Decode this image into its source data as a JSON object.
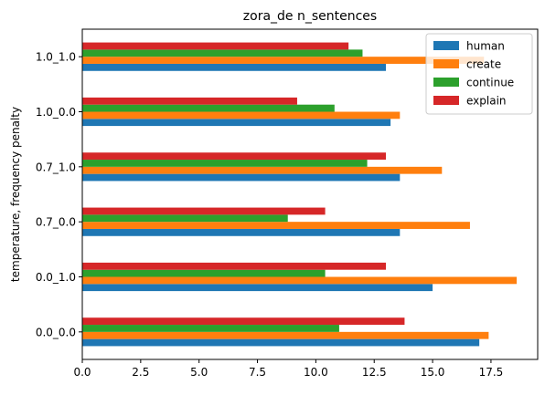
{
  "chart_data": {
    "type": "bar",
    "orientation": "horizontal",
    "title": "zora_de n_sentences",
    "xlabel": "",
    "ylabel": "temperature, frequency penalty",
    "xlim": [
      0,
      19.5
    ],
    "xticks": [
      0.0,
      2.5,
      5.0,
      7.5,
      10.0,
      12.5,
      15.0,
      17.5
    ],
    "xtick_labels": [
      "0.0",
      "2.5",
      "5.0",
      "7.5",
      "10.0",
      "12.5",
      "15.0",
      "17.5"
    ],
    "grid": false,
    "legend_position": "top-right",
    "categories": [
      "0.0_0.0",
      "0.0_1.0",
      "0.7_0.0",
      "0.7_1.0",
      "1.0_0.0",
      "1.0_1.0"
    ],
    "series": [
      {
        "name": "human",
        "color": "#1f77b4",
        "values": [
          17.0,
          15.0,
          13.6,
          13.6,
          13.2,
          13.0
        ]
      },
      {
        "name": "create",
        "color": "#ff7f0e",
        "values": [
          17.4,
          18.6,
          16.6,
          15.4,
          13.6,
          17.2
        ]
      },
      {
        "name": "continue",
        "color": "#2ca02c",
        "values": [
          11.0,
          10.4,
          8.8,
          12.2,
          10.8,
          12.0
        ]
      },
      {
        "name": "explain",
        "color": "#d62728",
        "values": [
          13.8,
          13.0,
          10.4,
          13.0,
          9.2,
          11.4
        ]
      }
    ]
  }
}
